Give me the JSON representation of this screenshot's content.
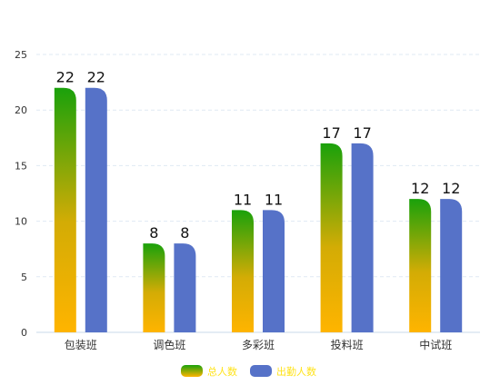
{
  "chart_data": {
    "type": "bar",
    "categories": [
      "包装班",
      "调色班",
      "多彩班",
      "投料班",
      "中试班"
    ],
    "series": [
      {
        "name": "总人数",
        "values": [
          22,
          8,
          11,
          17,
          12
        ]
      },
      {
        "name": "出勤人数",
        "values": [
          22,
          8,
          11,
          17,
          12
        ]
      }
    ],
    "title": "",
    "xlabel": "",
    "ylabel": "",
    "ylim": [
      0,
      25
    ],
    "yticks": [
      0,
      5,
      10,
      15,
      20,
      25
    ],
    "grid": true,
    "legend_position": "bottom-center"
  },
  "colors": {
    "series_1_gradient_top": "#1aa10b",
    "series_1_gradient_mid": "#d3ac05",
    "series_1_gradient_bottom": "#ffb400",
    "series_2": "#5672c8",
    "legend_text": "#ffe31a",
    "grid": "#dfe9f3",
    "axis": "#c9d9e8",
    "tick_text": "#333333",
    "label_text": "#111111"
  }
}
